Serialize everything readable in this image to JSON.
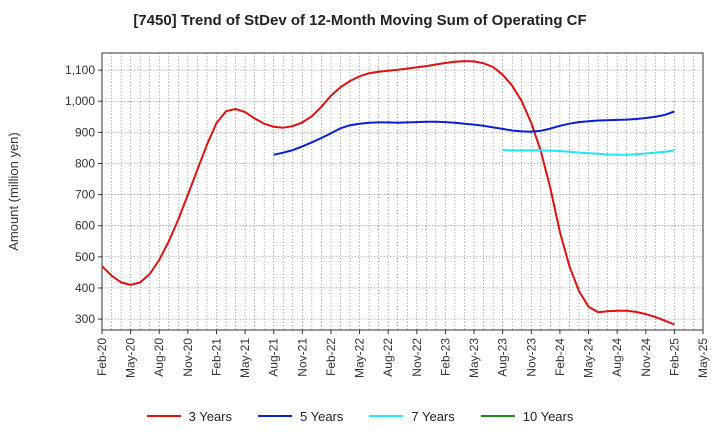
{
  "chart_data": {
    "type": "line",
    "title": "[7450]  Trend of StDev of 12-Month Moving Sum of Operating CF",
    "ylabel": "Amount (million yen)",
    "xlabel": "",
    "ylim": [
      265,
      1155
    ],
    "yticks": [
      300,
      400,
      500,
      600,
      700,
      800,
      900,
      1000,
      1100
    ],
    "ytick_labels": [
      "300",
      "400",
      "500",
      "600",
      "700",
      "800",
      "900",
      "1,000",
      "1,100"
    ],
    "x_range": [
      "2020-02",
      "2025-05"
    ],
    "xtick_labels": [
      "Feb-20",
      "May-20",
      "Aug-20",
      "Nov-20",
      "Feb-21",
      "May-21",
      "Aug-21",
      "Nov-21",
      "Feb-22",
      "May-22",
      "Aug-22",
      "Nov-22",
      "Feb-23",
      "May-23",
      "Aug-23",
      "Nov-23",
      "Feb-24",
      "May-24",
      "Aug-24",
      "Nov-24",
      "Feb-25",
      "May-25"
    ],
    "grid": true,
    "legend_position": "bottom",
    "series": [
      {
        "name": "3 Years",
        "color": "#dd1111",
        "points": [
          [
            "2020-02",
            470
          ],
          [
            "2020-03",
            440
          ],
          [
            "2020-04",
            418
          ],
          [
            "2020-05",
            410
          ],
          [
            "2020-06",
            418
          ],
          [
            "2020-07",
            445
          ],
          [
            "2020-08",
            490
          ],
          [
            "2020-09",
            550
          ],
          [
            "2020-10",
            620
          ],
          [
            "2020-11",
            700
          ],
          [
            "2020-12",
            780
          ],
          [
            "2021-01",
            860
          ],
          [
            "2021-02",
            930
          ],
          [
            "2021-03",
            968
          ],
          [
            "2021-04",
            975
          ],
          [
            "2021-05",
            965
          ],
          [
            "2021-06",
            945
          ],
          [
            "2021-07",
            928
          ],
          [
            "2021-08",
            918
          ],
          [
            "2021-09",
            915
          ],
          [
            "2021-10",
            920
          ],
          [
            "2021-11",
            932
          ],
          [
            "2021-12",
            952
          ],
          [
            "2022-01",
            982
          ],
          [
            "2022-02",
            1018
          ],
          [
            "2022-03",
            1045
          ],
          [
            "2022-04",
            1065
          ],
          [
            "2022-05",
            1080
          ],
          [
            "2022-06",
            1090
          ],
          [
            "2022-07",
            1095
          ],
          [
            "2022-08",
            1098
          ],
          [
            "2022-09",
            1101
          ],
          [
            "2022-10",
            1105
          ],
          [
            "2022-11",
            1109
          ],
          [
            "2022-12",
            1113
          ],
          [
            "2023-01",
            1118
          ],
          [
            "2023-02",
            1123
          ],
          [
            "2023-03",
            1127
          ],
          [
            "2023-04",
            1129
          ],
          [
            "2023-05",
            1128
          ],
          [
            "2023-06",
            1122
          ],
          [
            "2023-07",
            1110
          ],
          [
            "2023-08",
            1085
          ],
          [
            "2023-09",
            1050
          ],
          [
            "2023-10",
            1000
          ],
          [
            "2023-11",
            930
          ],
          [
            "2023-12",
            840
          ],
          [
            "2024-01",
            720
          ],
          [
            "2024-02",
            580
          ],
          [
            "2024-03",
            470
          ],
          [
            "2024-04",
            390
          ],
          [
            "2024-05",
            340
          ],
          [
            "2024-06",
            322
          ],
          [
            "2024-07",
            325
          ],
          [
            "2024-08",
            327
          ],
          [
            "2024-09",
            327
          ],
          [
            "2024-10",
            323
          ],
          [
            "2024-11",
            316
          ],
          [
            "2024-12",
            307
          ],
          [
            "2025-01",
            295
          ],
          [
            "2025-02",
            283
          ]
        ]
      },
      {
        "name": "5 Years",
        "color": "#0a1fcf",
        "points": [
          [
            "2021-08",
            828
          ],
          [
            "2021-09",
            835
          ],
          [
            "2021-10",
            843
          ],
          [
            "2021-11",
            855
          ],
          [
            "2021-12",
            868
          ],
          [
            "2022-01",
            882
          ],
          [
            "2022-02",
            897
          ],
          [
            "2022-03",
            913
          ],
          [
            "2022-04",
            923
          ],
          [
            "2022-05",
            928
          ],
          [
            "2022-06",
            931
          ],
          [
            "2022-07",
            932
          ],
          [
            "2022-08",
            932
          ],
          [
            "2022-09",
            931
          ],
          [
            "2022-10",
            932
          ],
          [
            "2022-11",
            933
          ],
          [
            "2022-12",
            934
          ],
          [
            "2023-01",
            934
          ],
          [
            "2023-02",
            933
          ],
          [
            "2023-03",
            931
          ],
          [
            "2023-04",
            928
          ],
          [
            "2023-05",
            925
          ],
          [
            "2023-06",
            921
          ],
          [
            "2023-07",
            916
          ],
          [
            "2023-08",
            911
          ],
          [
            "2023-09",
            906
          ],
          [
            "2023-10",
            903
          ],
          [
            "2023-11",
            902
          ],
          [
            "2023-12",
            905
          ],
          [
            "2024-01",
            912
          ],
          [
            "2024-02",
            921
          ],
          [
            "2024-03",
            928
          ],
          [
            "2024-04",
            933
          ],
          [
            "2024-05",
            936
          ],
          [
            "2024-06",
            938
          ],
          [
            "2024-07",
            939
          ],
          [
            "2024-08",
            940
          ],
          [
            "2024-09",
            941
          ],
          [
            "2024-10",
            943
          ],
          [
            "2024-11",
            946
          ],
          [
            "2024-12",
            950
          ],
          [
            "2025-01",
            956
          ],
          [
            "2025-02",
            967
          ]
        ]
      },
      {
        "name": "7 Years",
        "color": "#22e6f0",
        "points": [
          [
            "2023-08",
            843
          ],
          [
            "2023-09",
            842
          ],
          [
            "2023-10",
            842
          ],
          [
            "2023-11",
            842
          ],
          [
            "2023-12",
            842
          ],
          [
            "2024-01",
            841
          ],
          [
            "2024-02",
            840
          ],
          [
            "2024-03",
            838
          ],
          [
            "2024-04",
            835
          ],
          [
            "2024-05",
            833
          ],
          [
            "2024-06",
            831
          ],
          [
            "2024-07",
            829
          ],
          [
            "2024-08",
            828
          ],
          [
            "2024-09",
            828
          ],
          [
            "2024-10",
            830
          ],
          [
            "2024-11",
            832
          ],
          [
            "2024-12",
            835
          ],
          [
            "2025-01",
            838
          ],
          [
            "2025-02",
            842
          ]
        ]
      },
      {
        "name": "10 Years",
        "color": "#1a8c1a",
        "points": []
      }
    ]
  }
}
